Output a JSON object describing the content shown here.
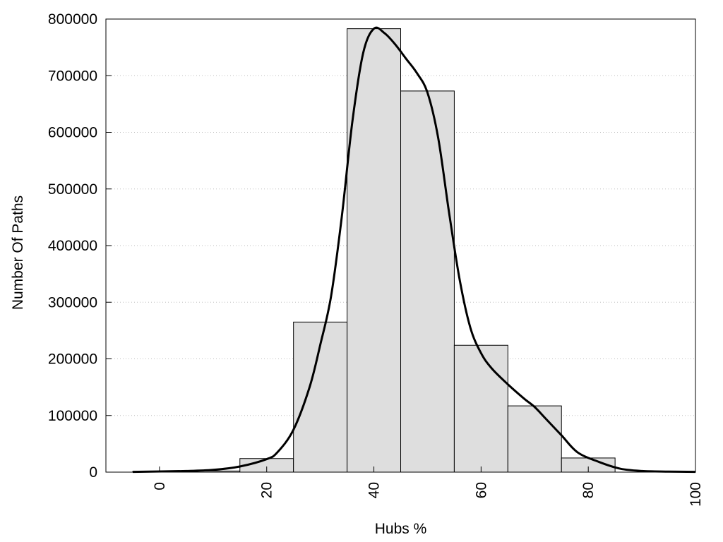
{
  "chart_data": {
    "type": "bar",
    "title": "",
    "xlabel": "Hubs %",
    "ylabel": "Number Of Paths",
    "xlim": [
      -10,
      100
    ],
    "ylim": [
      0,
      800000
    ],
    "grid": "horizontal dotted",
    "bars": [
      {
        "x": 0,
        "value": 1000
      },
      {
        "x": 10,
        "value": 2000
      },
      {
        "x": 20,
        "value": 24000
      },
      {
        "x": 30,
        "value": 265000
      },
      {
        "x": 40,
        "value": 783000
      },
      {
        "x": 50,
        "value": 673000
      },
      {
        "x": 60,
        "value": 224000
      },
      {
        "x": 70,
        "value": 117000
      },
      {
        "x": 80,
        "value": 25000
      }
    ],
    "bin_width": 10,
    "bar_color": "#dedede",
    "curve": {
      "name": "",
      "color": "#000000",
      "points": [
        [
          -5,
          500
        ],
        [
          5,
          2000
        ],
        [
          10,
          4000
        ],
        [
          15,
          10000
        ],
        [
          20,
          23000
        ],
        [
          22,
          35000
        ],
        [
          25,
          75000
        ],
        [
          28,
          150000
        ],
        [
          30,
          225000
        ],
        [
          32,
          310000
        ],
        [
          34,
          450000
        ],
        [
          36,
          620000
        ],
        [
          38,
          740000
        ],
        [
          40,
          783000
        ],
        [
          42,
          775000
        ],
        [
          44,
          755000
        ],
        [
          46,
          730000
        ],
        [
          48,
          705000
        ],
        [
          50,
          670000
        ],
        [
          52,
          590000
        ],
        [
          54,
          460000
        ],
        [
          56,
          340000
        ],
        [
          58,
          255000
        ],
        [
          60,
          210000
        ],
        [
          62,
          183000
        ],
        [
          65,
          155000
        ],
        [
          68,
          130000
        ],
        [
          70,
          115000
        ],
        [
          72,
          95000
        ],
        [
          75,
          65000
        ],
        [
          78,
          35000
        ],
        [
          82,
          18000
        ],
        [
          86,
          6000
        ],
        [
          90,
          2000
        ],
        [
          95,
          1000
        ],
        [
          100,
          500
        ]
      ]
    },
    "x_ticks": [
      "0",
      "20",
      "40",
      "60",
      "80",
      "100"
    ],
    "y_ticks": [
      "0",
      "100000",
      "200000",
      "300000",
      "400000",
      "500000",
      "600000",
      "700000",
      "800000"
    ]
  }
}
